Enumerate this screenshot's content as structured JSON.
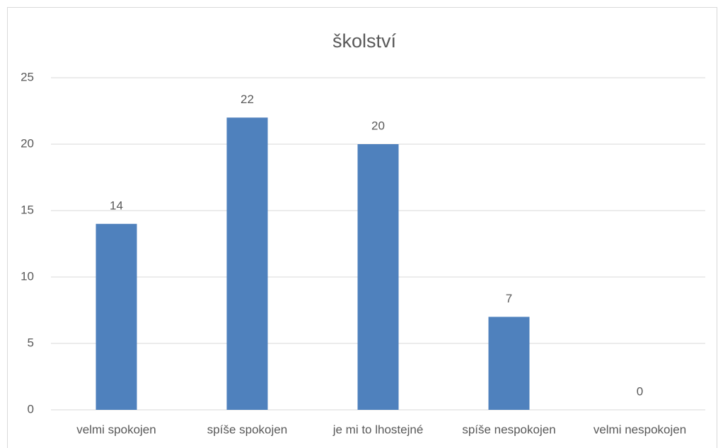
{
  "chart_data": {
    "type": "bar",
    "title": "školství",
    "categories": [
      "velmi spokojen",
      "spíše spokojen",
      "je mi to lhostejné",
      "spíše nespokojen",
      "velmi nespokojen"
    ],
    "values": [
      14,
      22,
      20,
      7,
      0
    ],
    "color": "#4f81bd",
    "ylim": [
      0,
      25
    ],
    "yticks": [
      0,
      5,
      10,
      15,
      20,
      25
    ],
    "grid": true
  }
}
